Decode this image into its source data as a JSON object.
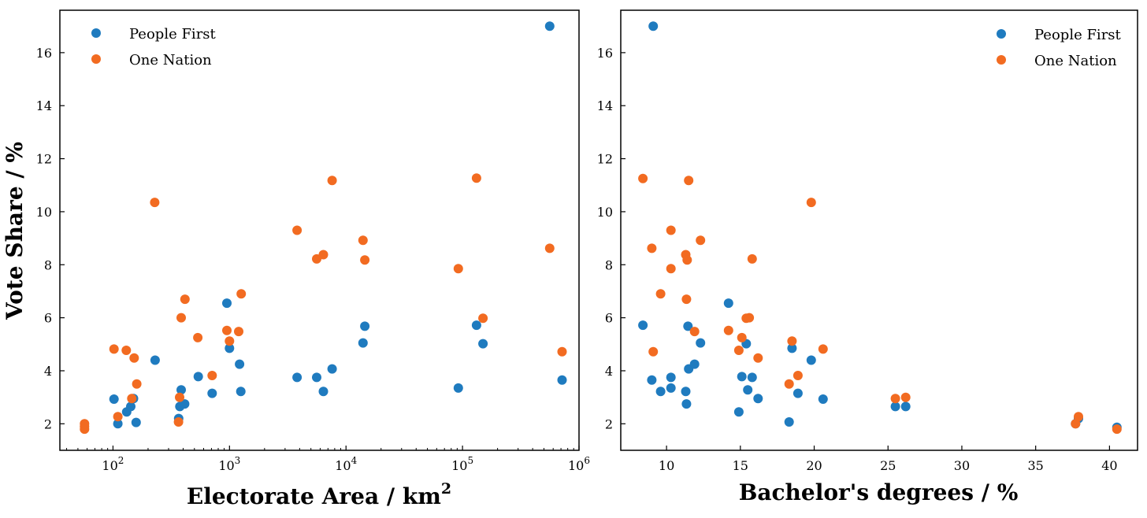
{
  "colors": {
    "people_first": "#1f7bbf",
    "one_nation": "#f26b21"
  },
  "chart_data": [
    {
      "type": "scatter",
      "x_scale": "log",
      "xlabel_text": "Electorate Area / km",
      "xlabel_sup": "2",
      "ylabel": "Vote Share / %",
      "xlim": [
        35,
        1000000
      ],
      "ylim": [
        1,
        17.6
      ],
      "x_ticks": [
        {
          "value": 100,
          "base": "10",
          "exp": "2"
        },
        {
          "value": 1000,
          "base": "10",
          "exp": "3"
        },
        {
          "value": 10000,
          "base": "10",
          "exp": "4"
        },
        {
          "value": 100000,
          "base": "10",
          "exp": "5"
        },
        {
          "value": 1000000,
          "base": "10",
          "exp": "6"
        }
      ],
      "y_ticks": [
        "2",
        "4",
        "6",
        "8",
        "10",
        "12",
        "14",
        "16"
      ],
      "legend": [
        "People First",
        "One Nation"
      ],
      "legend_position": "top-left",
      "series": [
        {
          "name": "People First",
          "points": [
            [
              102,
              2.93
            ],
            [
              110,
              2.0
            ],
            [
              131,
              2.45
            ],
            [
              142,
              2.65
            ],
            [
              150,
              2.95
            ],
            [
              158,
              2.05
            ],
            [
              230,
              4.4
            ],
            [
              366,
              2.2
            ],
            [
              375,
              2.65
            ],
            [
              385,
              3.28
            ],
            [
              412,
              2.75
            ],
            [
              540,
              3.78
            ],
            [
              710,
              3.15
            ],
            [
              950,
              6.55
            ],
            [
              1000,
              4.85
            ],
            [
              1220,
              4.25
            ],
            [
              1250,
              3.22
            ],
            [
              3800,
              3.75
            ],
            [
              5600,
              3.75
            ],
            [
              6400,
              3.22
            ],
            [
              7600,
              4.07
            ],
            [
              14000,
              5.05
            ],
            [
              14500,
              5.68
            ],
            [
              92000,
              3.35
            ],
            [
              132000,
              5.72
            ],
            [
              150000,
              5.02
            ],
            [
              560000,
              17.0
            ],
            [
              715000,
              3.65
            ]
          ]
        },
        {
          "name": "One Nation",
          "points": [
            [
              57,
              1.8
            ],
            [
              57,
              1.9
            ],
            [
              57,
              2.0
            ],
            [
              102,
              4.82
            ],
            [
              110,
              2.27
            ],
            [
              130,
              4.77
            ],
            [
              145,
              2.95
            ],
            [
              152,
              4.48
            ],
            [
              160,
              3.5
            ],
            [
              228,
              10.35
            ],
            [
              365,
              2.07
            ],
            [
              373,
              3.0
            ],
            [
              385,
              6.0
            ],
            [
              415,
              6.7
            ],
            [
              535,
              5.25
            ],
            [
              710,
              3.82
            ],
            [
              950,
              5.52
            ],
            [
              1000,
              5.12
            ],
            [
              1200,
              5.48
            ],
            [
              1260,
              6.9
            ],
            [
              3800,
              9.3
            ],
            [
              5600,
              8.22
            ],
            [
              6400,
              8.38
            ],
            [
              7600,
              11.18
            ],
            [
              14000,
              8.92
            ],
            [
              14500,
              8.18
            ],
            [
              92000,
              7.85
            ],
            [
              132000,
              11.27
            ],
            [
              150000,
              5.98
            ],
            [
              560000,
              8.62
            ],
            [
              715000,
              4.72
            ]
          ]
        }
      ]
    },
    {
      "type": "scatter",
      "xlabel": "Bachelor's degrees / %",
      "ylabel": "",
      "xlim": [
        6.9,
        41.9
      ],
      "ylim": [
        1,
        17.6
      ],
      "x_ticks": [
        "10",
        "15",
        "20",
        "25",
        "30",
        "35",
        "40"
      ],
      "y_ticks": [
        "2",
        "4",
        "6",
        "8",
        "10",
        "12",
        "14",
        "16"
      ],
      "legend": [
        "People First",
        "One Nation"
      ],
      "legend_position": "top-right",
      "series": [
        {
          "name": "People First",
          "points": [
            [
              8.4,
              5.72
            ],
            [
              9.0,
              3.65
            ],
            [
              9.1,
              17.0
            ],
            [
              9.6,
              3.22
            ],
            [
              10.3,
              3.35
            ],
            [
              10.3,
              3.75
            ],
            [
              11.3,
              3.22
            ],
            [
              11.35,
              2.75
            ],
            [
              11.45,
              5.68
            ],
            [
              11.5,
              4.07
            ],
            [
              11.9,
              4.25
            ],
            [
              12.3,
              5.05
            ],
            [
              14.2,
              6.55
            ],
            [
              14.9,
              2.45
            ],
            [
              15.1,
              3.78
            ],
            [
              15.4,
              5.02
            ],
            [
              15.5,
              3.28
            ],
            [
              15.8,
              3.75
            ],
            [
              16.2,
              2.95
            ],
            [
              18.3,
              2.07
            ],
            [
              18.5,
              4.85
            ],
            [
              18.9,
              3.15
            ],
            [
              19.8,
              4.4
            ],
            [
              20.6,
              2.93
            ],
            [
              25.5,
              2.65
            ],
            [
              26.2,
              2.65
            ],
            [
              37.7,
              2.0
            ],
            [
              37.9,
              2.2
            ],
            [
              40.5,
              1.87
            ]
          ]
        },
        {
          "name": "One Nation",
          "points": [
            [
              8.4,
              11.25
            ],
            [
              9.0,
              8.62
            ],
            [
              9.1,
              4.72
            ],
            [
              9.6,
              6.9
            ],
            [
              10.3,
              9.3
            ],
            [
              10.3,
              7.85
            ],
            [
              11.3,
              8.38
            ],
            [
              11.35,
              6.7
            ],
            [
              11.4,
              8.18
            ],
            [
              11.5,
              11.18
            ],
            [
              11.9,
              5.48
            ],
            [
              12.3,
              8.92
            ],
            [
              14.2,
              5.52
            ],
            [
              14.9,
              4.77
            ],
            [
              15.1,
              5.25
            ],
            [
              15.4,
              5.98
            ],
            [
              15.6,
              6.0
            ],
            [
              15.8,
              8.22
            ],
            [
              16.2,
              4.48
            ],
            [
              18.3,
              3.5
            ],
            [
              18.5,
              5.12
            ],
            [
              18.9,
              3.82
            ],
            [
              19.8,
              10.35
            ],
            [
              20.6,
              4.82
            ],
            [
              25.5,
              2.95
            ],
            [
              26.2,
              3.0
            ],
            [
              37.7,
              2.0
            ],
            [
              37.9,
              2.27
            ],
            [
              40.5,
              1.8
            ]
          ]
        }
      ]
    }
  ]
}
